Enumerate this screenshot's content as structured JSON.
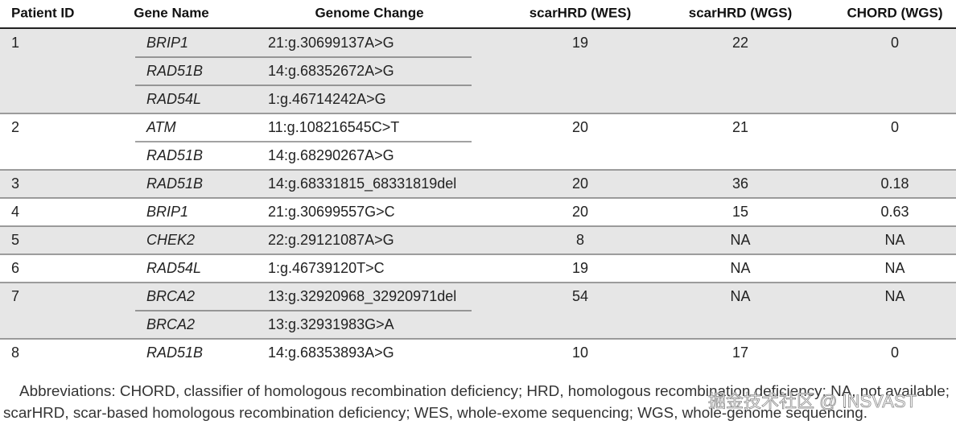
{
  "table": {
    "header": [
      "Patient ID",
      "Gene Name",
      "Genome Change",
      "scarHRD (WES)",
      "scarHRD (WGS)",
      "CHORD (WGS)"
    ],
    "patients": [
      {
        "id": "1",
        "variants": [
          {
            "gene": "BRIP1",
            "change": "21:g.30699137A>G"
          },
          {
            "gene": "RAD51B",
            "change": "14:g.68352672A>G"
          },
          {
            "gene": "RAD54L",
            "change": "1:g.46714242A>G"
          }
        ],
        "wes": "19",
        "wgs": "22",
        "chord": "0"
      },
      {
        "id": "2",
        "variants": [
          {
            "gene": "ATM",
            "change": "11:g.108216545C>T"
          },
          {
            "gene": "RAD51B",
            "change": "14:g.68290267A>G"
          }
        ],
        "wes": "20",
        "wgs": "21",
        "chord": "0"
      },
      {
        "id": "3",
        "variants": [
          {
            "gene": "RAD51B",
            "change": "14:g.68331815_68331819del"
          }
        ],
        "wes": "20",
        "wgs": "36",
        "chord": "0.18"
      },
      {
        "id": "4",
        "variants": [
          {
            "gene": "BRIP1",
            "change": "21:g.30699557G>C"
          }
        ],
        "wes": "20",
        "wgs": "15",
        "chord": "0.63"
      },
      {
        "id": "5",
        "variants": [
          {
            "gene": "CHEK2",
            "change": "22:g.29121087A>G"
          }
        ],
        "wes": "8",
        "wgs": "NA",
        "chord": "NA"
      },
      {
        "id": "6",
        "variants": [
          {
            "gene": "RAD54L",
            "change": "1:g.46739120T>C"
          }
        ],
        "wes": "19",
        "wgs": "NA",
        "chord": "NA"
      },
      {
        "id": "7",
        "variants": [
          {
            "gene": "BRCA2",
            "change": "13:g.32920968_32920971del"
          },
          {
            "gene": "BRCA2",
            "change": "13:g.32931983G>A"
          }
        ],
        "wes": "54",
        "wgs": "NA",
        "chord": "NA"
      },
      {
        "id": "8",
        "variants": [
          {
            "gene": "RAD51B",
            "change": "14:g.68353893A>G"
          }
        ],
        "wes": "10",
        "wgs": "17",
        "chord": "0"
      }
    ]
  },
  "footnote": [
    "Abbreviations: CHORD, classifier of homologous recombination deficiency; HRD, homologous recombination deficiency; NA, not available;",
    "scarHRD, scar-based homologous recombination deficiency; WES, whole-exome sequencing; WGS, whole-genome sequencing."
  ],
  "watermark": "掘金技术社区 @ INSVAST"
}
